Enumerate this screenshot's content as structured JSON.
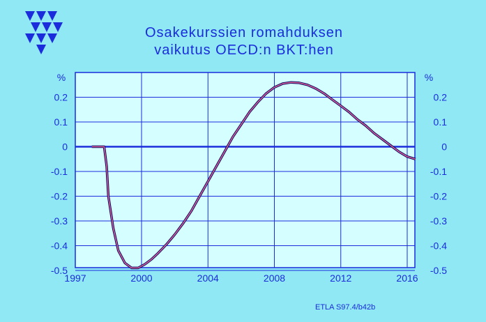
{
  "title_line1": "Osakekurssien  romahduksen",
  "title_line2": "vaikutus  OECD:n  BKT:hen",
  "source": "ETLA S97.4/b42b",
  "colors": {
    "background": "#8fe8f4",
    "plot_area": "#d4feff",
    "axis_text": "#1a2cdc",
    "grid": "#1a2cdc",
    "line_outer": "#0a0a60",
    "line_inner": "#e0609a"
  },
  "logo_icon": "etla-triangles-logo",
  "chart_data": {
    "type": "line",
    "title": "Osakekurssien romahduksen vaikutus OECD:n BKT:hen",
    "xlabel": "",
    "ylabel": "%",
    "y_unit_label_left": "%",
    "y_unit_label_right": "%",
    "xlim": [
      1997,
      2016.5
    ],
    "ylim": [
      -0.5,
      0.3
    ],
    "x_ticks": [
      1997,
      2000,
      2004,
      2008,
      2012,
      2016
    ],
    "x_tick_labels": [
      "1997",
      "2000",
      "2004",
      "2008",
      "2012",
      "2016"
    ],
    "x_gridlines": [
      2000,
      2004,
      2008,
      2012,
      2016
    ],
    "y_ticks": [
      0.2,
      0.1,
      0,
      -0.1,
      -0.2,
      -0.3,
      -0.4,
      -0.5
    ],
    "y_tick_labels": [
      "0.2",
      "0.1",
      "0",
      "-0.1",
      "-0.2",
      "-0.3",
      "-0.4",
      "-0.5"
    ],
    "grid": true,
    "series": [
      {
        "x": [
          1997.0,
          1997.75,
          1997.9,
          1998.0,
          1998.3,
          1998.6,
          1999.0,
          1999.4,
          1999.8,
          2000.2,
          2000.6,
          2001.0,
          2001.5,
          2002.0,
          2002.5,
          2003.0,
          2003.5,
          2004.0,
          2004.5,
          2005.0,
          2005.5,
          2006.0,
          2006.5,
          2007.0,
          2007.5,
          2008.0,
          2008.5,
          2009.0,
          2009.5,
          2010.0,
          2010.5,
          2011.0,
          2011.5,
          2012.0,
          2012.5,
          2013.0,
          2013.5,
          2014.0,
          2014.5,
          2015.0,
          2015.5,
          2016.0,
          2016.5
        ],
        "y": [
          0.0,
          0.0,
          -0.08,
          -0.2,
          -0.33,
          -0.42,
          -0.47,
          -0.49,
          -0.49,
          -0.475,
          -0.455,
          -0.43,
          -0.395,
          -0.355,
          -0.31,
          -0.26,
          -0.2,
          -0.14,
          -0.08,
          -0.02,
          0.04,
          0.09,
          0.14,
          0.18,
          0.215,
          0.24,
          0.255,
          0.26,
          0.258,
          0.25,
          0.235,
          0.215,
          0.19,
          0.165,
          0.14,
          0.11,
          0.085,
          0.055,
          0.03,
          0.005,
          -0.02,
          -0.04,
          -0.05
        ]
      }
    ]
  }
}
